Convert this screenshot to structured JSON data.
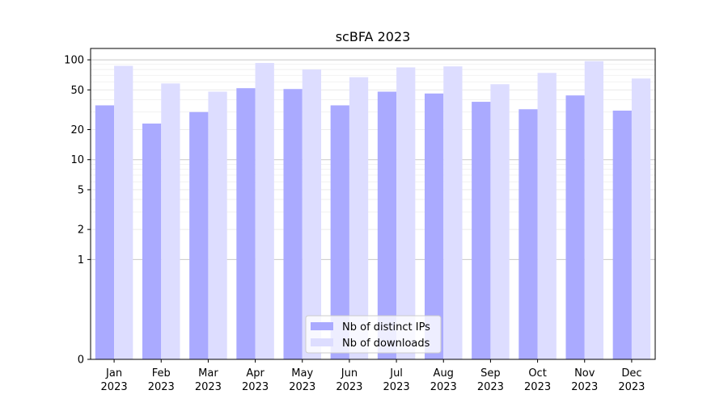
{
  "chart_data": {
    "type": "bar",
    "title": "scBFA 2023",
    "xlabel": "",
    "ylabel": "",
    "yscale": "symlog",
    "categories": [
      "Jan\n2023",
      "Feb\n2023",
      "Mar\n2023",
      "Apr\n2023",
      "May\n2023",
      "Jun\n2023",
      "Jul\n2023",
      "Aug\n2023",
      "Sep\n2023",
      "Oct\n2023",
      "Nov\n2023",
      "Dec\n2023"
    ],
    "series": [
      {
        "name": "Nb of distinct IPs",
        "color": "#aaaaff",
        "values": [
          35,
          23,
          30,
          52,
          51,
          35,
          48,
          46,
          38,
          32,
          44,
          31
        ]
      },
      {
        "name": "Nb of downloads",
        "color": "#ddddff",
        "values": [
          87,
          58,
          48,
          93,
          80,
          67,
          84,
          86,
          57,
          74,
          97,
          65
        ]
      }
    ],
    "yticks": [
      "0",
      "1",
      "2",
      "5",
      "10",
      "20",
      "50",
      "100"
    ],
    "ylim": [
      0,
      130
    ],
    "grid": true,
    "legend_position": "bottom-center"
  }
}
